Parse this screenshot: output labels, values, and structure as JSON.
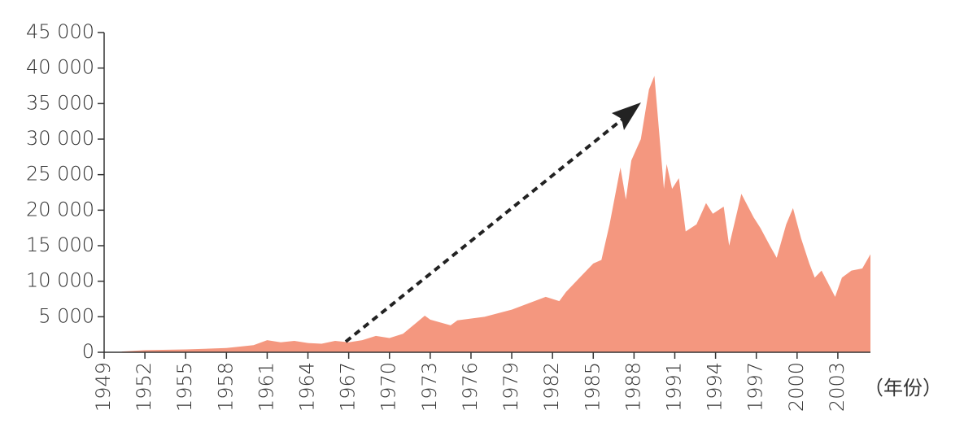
{
  "chart_data": {
    "type": "area",
    "x_label": "（年份）",
    "color": "#f4977f",
    "x": [
      1950.3,
      1952,
      1955,
      1958,
      1960,
      1961,
      1962,
      1963,
      1964,
      1965,
      1966,
      1967,
      1968,
      1969,
      1970,
      1971,
      1972.6,
      1973,
      1974.5,
      1975,
      1977,
      1979,
      1981.5,
      1982.5,
      1983,
      1984,
      1985,
      1985.6,
      1986.2,
      1987,
      1987.4,
      1987.8,
      1988.5,
      1989.1,
      1989.5,
      1990.2,
      1990.4,
      1990.8,
      1991.3,
      1991.8,
      1992.6,
      1993.3,
      1993.8,
      1994.6,
      1995.0,
      1995.9,
      1996.8,
      1997.3,
      1998.0,
      1998.5,
      1999.2,
      1999.7,
      2000.3,
      2000.9,
      2001.3,
      2001.8,
      2002.8,
      2003.3,
      2004.0,
      2004.8,
      2005.4
    ],
    "values": [
      100,
      300,
      400,
      600,
      1000,
      1700,
      1400,
      1600,
      1300,
      1200,
      1600,
      1400,
      1700,
      2300,
      2000,
      2600,
      5150,
      4600,
      3800,
      4500,
      5000,
      6000,
      7800,
      7200,
      8500,
      10500,
      12500,
      13000,
      18000,
      26000,
      21500,
      27000,
      30000,
      37000,
      38900,
      23000,
      26500,
      23000,
      24500,
      17000,
      18000,
      21000,
      19500,
      20500,
      15000,
      22300,
      19000,
      17500,
      15000,
      13300,
      18000,
      20300,
      16000,
      12500,
      10500,
      11500,
      7800,
      10500,
      11500,
      11800,
      13800
    ],
    "xlim": [
      1949,
      2005.4
    ],
    "xticks": [
      1949,
      1952,
      1955,
      1958,
      1961,
      1964,
      1967,
      1970,
      1973,
      1976,
      1979,
      1982,
      1985,
      1988,
      1991,
      1994,
      1997,
      2000,
      2003
    ],
    "ylim": [
      0,
      45000
    ],
    "yticks": [
      0,
      {
        "value": 5000,
        "label": "5 000"
      },
      {
        "value": 10000,
        "label": "10 000"
      },
      {
        "value": 15000,
        "label": "15 000"
      },
      {
        "value": 20000,
        "label": "20 000"
      },
      {
        "value": 25000,
        "label": "25 000"
      },
      {
        "value": 30000,
        "label": "30 000"
      },
      {
        "value": 35000,
        "label": "35 000"
      },
      {
        "value": 40000,
        "label": "40 000"
      },
      {
        "value": 45000,
        "label": "45 000"
      }
    ]
  }
}
